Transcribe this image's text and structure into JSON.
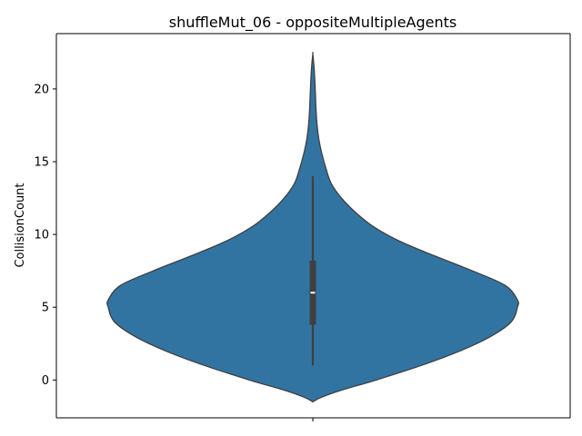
{
  "chart_data": {
    "type": "violin",
    "title": "shuffleMut_06 - oppositeMultipleAgents",
    "xlabel": "",
    "ylabel": "CollisionCount",
    "ylim": [
      -2.6,
      23.8
    ],
    "yticks": [
      0,
      5,
      10,
      15,
      20
    ],
    "grid": false,
    "legend": "none",
    "colors": {
      "fill": "#3274a1",
      "edge": "#3f3f3f",
      "box": "#3f3f3f",
      "median": "#ffffff"
    },
    "density_profile": [
      {
        "y": -1.5,
        "density": 0.0
      },
      {
        "y": -1.2,
        "density": 0.04
      },
      {
        "y": -0.7,
        "density": 0.14
      },
      {
        "y": 0.0,
        "density": 0.31
      },
      {
        "y": 1.0,
        "density": 0.53
      },
      {
        "y": 2.0,
        "density": 0.72
      },
      {
        "y": 3.0,
        "density": 0.87
      },
      {
        "y": 4.0,
        "density": 0.97
      },
      {
        "y": 5.0,
        "density": 1.0
      },
      {
        "y": 5.5,
        "density": 1.0
      },
      {
        "y": 6.5,
        "density": 0.94
      },
      {
        "y": 7.5,
        "density": 0.78
      },
      {
        "y": 8.5,
        "density": 0.6
      },
      {
        "y": 9.5,
        "density": 0.43
      },
      {
        "y": 10.5,
        "density": 0.3
      },
      {
        "y": 11.5,
        "density": 0.21
      },
      {
        "y": 12.5,
        "density": 0.14
      },
      {
        "y": 13.5,
        "density": 0.09
      },
      {
        "y": 14.5,
        "density": 0.065
      },
      {
        "y": 15.5,
        "density": 0.045
      },
      {
        "y": 16.5,
        "density": 0.03
      },
      {
        "y": 17.5,
        "density": 0.021
      },
      {
        "y": 18.5,
        "density": 0.016
      },
      {
        "y": 19.5,
        "density": 0.013
      },
      {
        "y": 20.5,
        "density": 0.01
      },
      {
        "y": 21.5,
        "density": 0.006
      },
      {
        "y": 22.4,
        "density": 0.0
      }
    ],
    "box": {
      "whisker_low": 1,
      "q1": 3.8,
      "median": 6,
      "q3": 8.2,
      "whisker_high": 14
    }
  }
}
